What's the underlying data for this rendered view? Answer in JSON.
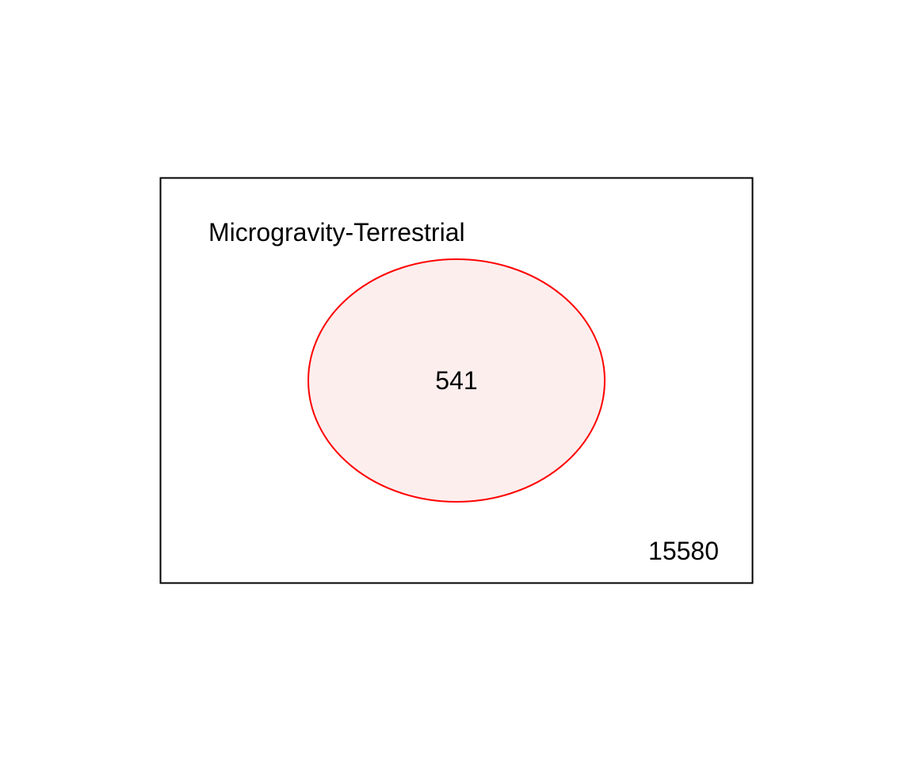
{
  "venn": {
    "set_label": "Microgravity-Terrestrial",
    "inside_count": "541",
    "outside_count": "15580",
    "colors": {
      "circle_stroke": "#ff0000",
      "circle_fill": "#fdeeee",
      "frame_stroke": "#000000",
      "text": "#000000"
    }
  }
}
